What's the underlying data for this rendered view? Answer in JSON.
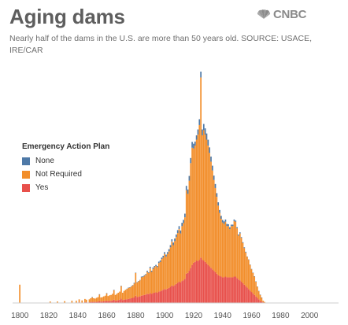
{
  "header": {
    "title": "Aging dams",
    "subtitle": "Nearly half of the dams in the U.S. are more than 50 years old. SOURCE: USACE, IRE/CAR",
    "logo_text": "CNBC",
    "logo_icon": "peacock-icon"
  },
  "chart_data": {
    "type": "bar",
    "stacked": true,
    "title": "Aging dams",
    "xlabel": "",
    "ylabel": "",
    "xlim": [
      1795,
      2020
    ],
    "ylim": [
      0,
      660
    ],
    "grid": false,
    "legend": {
      "title": "Emergency Action Plan",
      "placement": "left",
      "entries": [
        "None",
        "Not Required",
        "Yes"
      ]
    },
    "x_ticks": [
      "1800",
      "1820",
      "1840",
      "1860",
      "1880",
      "1900",
      "1920",
      "1940",
      "1960",
      "1980",
      "2000"
    ],
    "series": [
      {
        "name": "None",
        "color": "#4e79a7",
        "values": [
          0,
          0,
          0,
          0,
          0,
          0,
          0,
          0,
          0,
          0,
          0,
          0,
          0,
          0,
          0,
          0,
          0,
          0,
          0,
          0,
          0,
          0,
          0,
          0,
          0,
          0,
          0,
          0,
          0,
          0,
          0,
          0,
          0,
          0,
          0,
          0,
          0,
          0,
          0,
          0,
          0,
          0,
          0,
          0,
          0,
          0,
          0,
          0,
          0,
          0,
          1,
          0,
          0,
          0,
          0,
          1,
          0,
          0,
          0,
          0,
          1,
          0,
          0,
          0,
          0,
          1,
          0,
          0,
          0,
          0,
          1,
          0,
          0,
          0,
          1,
          1,
          1,
          1,
          1,
          2,
          1,
          1,
          1,
          1,
          2,
          2,
          2,
          2,
          3,
          2,
          4,
          3,
          4,
          3,
          3,
          3,
          4,
          4,
          4,
          5,
          5,
          5,
          5,
          6,
          6,
          6,
          7,
          7,
          7,
          8,
          8,
          8,
          9,
          9,
          10,
          12,
          12,
          13,
          14,
          16,
          13,
          11,
          12,
          14,
          16,
          16,
          16,
          17,
          17,
          17,
          16,
          15,
          14,
          13,
          12,
          11,
          10,
          9,
          8,
          8,
          7,
          7,
          6,
          6,
          5,
          5,
          4,
          4,
          4,
          3,
          3,
          3,
          3,
          2,
          2,
          2,
          2,
          1,
          1,
          1,
          1,
          1,
          1,
          1,
          1,
          1,
          1,
          1,
          0,
          0
        ]
      },
      {
        "name": "Not Required",
        "color": "#f28e2b",
        "values": [
          50,
          0,
          0,
          0,
          0,
          0,
          0,
          0,
          0,
          0,
          0,
          0,
          0,
          0,
          0,
          0,
          0,
          0,
          0,
          0,
          0,
          3,
          0,
          0,
          0,
          0,
          3,
          0,
          0,
          0,
          0,
          4,
          0,
          0,
          0,
          0,
          5,
          0,
          0,
          5,
          0,
          8,
          0,
          6,
          0,
          9,
          7,
          0,
          8,
          10,
          12,
          10,
          9,
          11,
          12,
          18,
          11,
          12,
          13,
          15,
          20,
          14,
          15,
          16,
          18,
          26,
          16,
          18,
          20,
          22,
          34,
          20,
          24,
          26,
          28,
          30,
          30,
          32,
          34,
          38,
          62,
          40,
          42,
          44,
          50,
          50,
          52,
          54,
          60,
          58,
          68,
          60,
          66,
          70,
          72,
          70,
          78,
          80,
          86,
          88,
          96,
          90,
          95,
          100,
          108,
          120,
          112,
          120,
          128,
          136,
          144,
          134,
          150,
          156,
          168,
          228,
          216,
          246,
          286,
          320,
          312,
          318,
          330,
          346,
          368,
          492,
          340,
          356,
          348,
          338,
          326,
          310,
          290,
          270,
          248,
          230,
          210,
          190,
          172,
          158,
          150,
          146,
          150,
          140,
          140,
          132,
          140,
          140,
          152,
          150,
          136,
          120,
          128,
          120,
          110,
          100,
          92,
          84,
          80,
          70,
          62,
          56,
          50,
          40,
          30,
          22,
          16,
          10,
          4,
          2
        ]
      },
      {
        "name": "Yes",
        "color": "#e8504b",
        "values": [
          0,
          0,
          0,
          0,
          0,
          0,
          0,
          0,
          0,
          0,
          0,
          0,
          0,
          0,
          0,
          0,
          0,
          0,
          0,
          0,
          0,
          1,
          0,
          0,
          0,
          0,
          1,
          0,
          0,
          0,
          0,
          1,
          0,
          0,
          0,
          0,
          1,
          0,
          0,
          1,
          0,
          2,
          0,
          1,
          0,
          2,
          2,
          0,
          2,
          3,
          3,
          3,
          3,
          3,
          4,
          5,
          4,
          4,
          5,
          5,
          6,
          5,
          6,
          6,
          7,
          9,
          6,
          7,
          8,
          9,
          12,
          8,
          9,
          10,
          10,
          11,
          12,
          13,
          14,
          15,
          20,
          16,
          17,
          18,
          20,
          21,
          22,
          23,
          25,
          24,
          27,
          25,
          27,
          28,
          29,
          28,
          31,
          32,
          34,
          36,
          38,
          37,
          39,
          41,
          44,
          48,
          46,
          49,
          52,
          55,
          58,
          56,
          60,
          62,
          66,
          80,
          82,
          88,
          96,
          104,
          110,
          112,
          116,
          114,
          118,
          124,
          118,
          116,
          112,
          108,
          104,
          100,
          96,
          92,
          88,
          84,
          80,
          76,
          74,
          72,
          70,
          70,
          72,
          70,
          70,
          70,
          70,
          70,
          72,
          72,
          68,
          64,
          62,
          58,
          54,
          50,
          46,
          42,
          38,
          34,
          30,
          26,
          22,
          18,
          14,
          10,
          6,
          4,
          2,
          1
        ]
      }
    ]
  }
}
